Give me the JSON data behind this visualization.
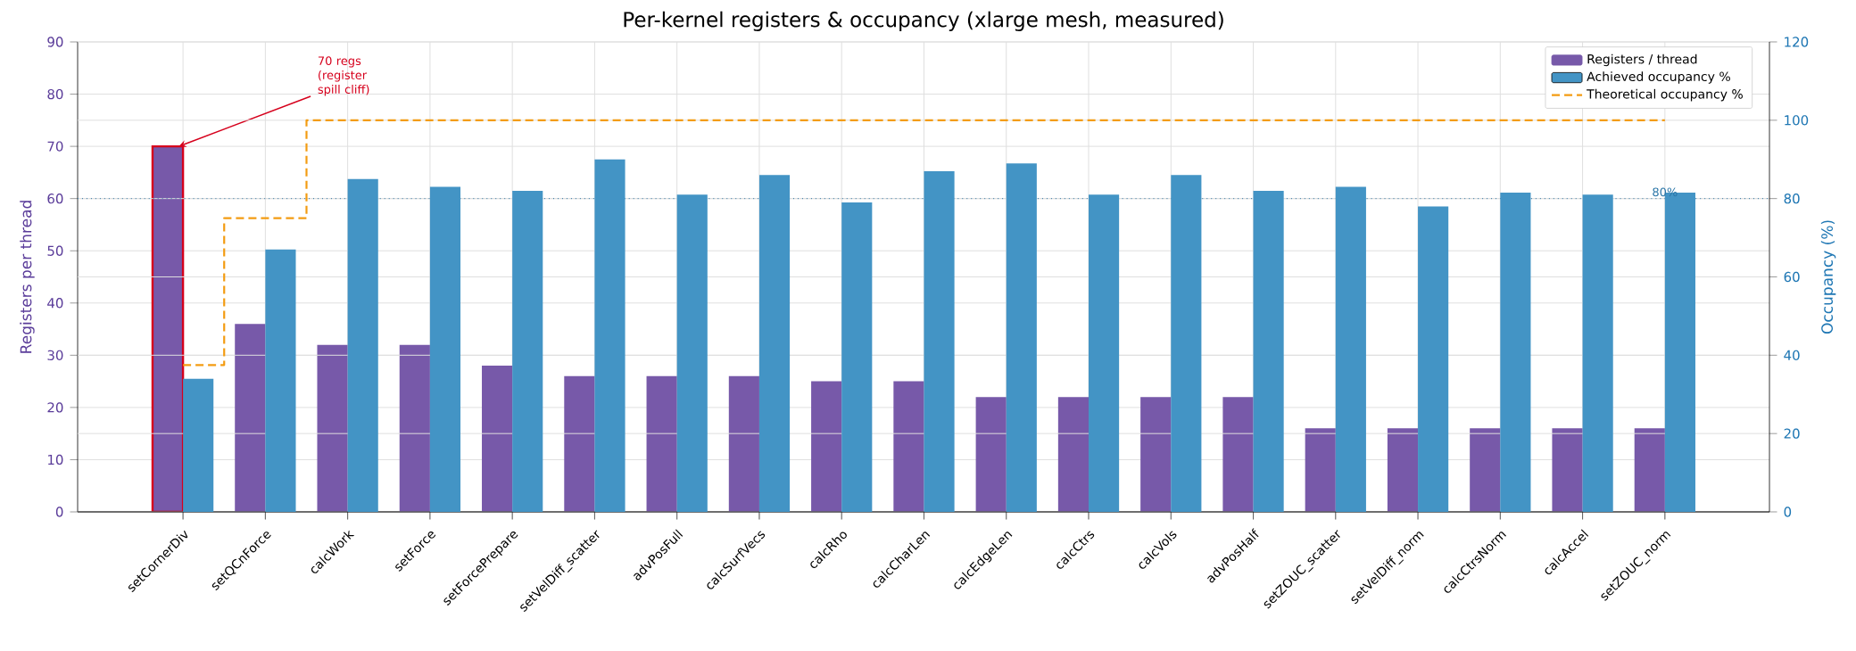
{
  "chart_data": {
    "type": "bar",
    "title": "Per-kernel registers & occupancy (xlarge mesh, measured)",
    "ylabel": "Registers per thread",
    "y2label": "Occupancy (%)",
    "categories": [
      "setCornerDiv",
      "setQCnForce",
      "calcWork",
      "setForce",
      "setForcePrepare",
      "setVelDiff_scatter",
      "advPosFull",
      "calcSurfVecs",
      "calcRho",
      "calcCharLen",
      "calcEdgeLen",
      "calcCtrs",
      "calcVols",
      "advPosHalf",
      "setZOUC_scatter",
      "setVelDiff_norm",
      "calcCtrsNorm",
      "calcAccel",
      "setZOUC_norm"
    ],
    "series": [
      {
        "name": "Registers / thread",
        "color": "#7759a9",
        "values": [
          70,
          36,
          32,
          32,
          28,
          26,
          26,
          26,
          25,
          25,
          22,
          22,
          22,
          22,
          16,
          16,
          16,
          16,
          16
        ]
      },
      {
        "name": "Achieved occupancy %",
        "color": "#4394c5",
        "axis": "y2",
        "values": [
          34,
          67,
          85,
          83,
          82,
          90,
          81,
          86,
          79,
          87,
          89,
          81,
          86,
          82,
          83,
          78,
          81.5,
          81,
          81.5
        ]
      },
      {
        "name": "Theoretical occupancy %",
        "type": "step",
        "color": "#f39c12",
        "axis": "y2",
        "line_style": "dashed",
        "values": [
          37.5,
          75,
          100,
          100,
          100,
          100,
          100,
          100,
          100,
          100,
          100,
          100,
          100,
          100,
          100,
          100,
          100,
          100,
          100
        ]
      }
    ],
    "ylim": [
      0,
      90
    ],
    "yticks": [
      0,
      10,
      20,
      30,
      40,
      50,
      60,
      70,
      80,
      90
    ],
    "y2lim": [
      0,
      120
    ],
    "y2ticks": [
      0,
      20,
      40,
      60,
      80,
      100,
      120
    ],
    "ref_lines": [
      {
        "axis": "y2",
        "value": 80,
        "label": "80%",
        "color": "#2874a6",
        "line_style": "dotted"
      }
    ],
    "annotations": [
      {
        "text": "70 regs (register spill cliff)",
        "x": "setCornerDiv",
        "y": 70
      }
    ],
    "grid": true,
    "legend": "top right"
  }
}
